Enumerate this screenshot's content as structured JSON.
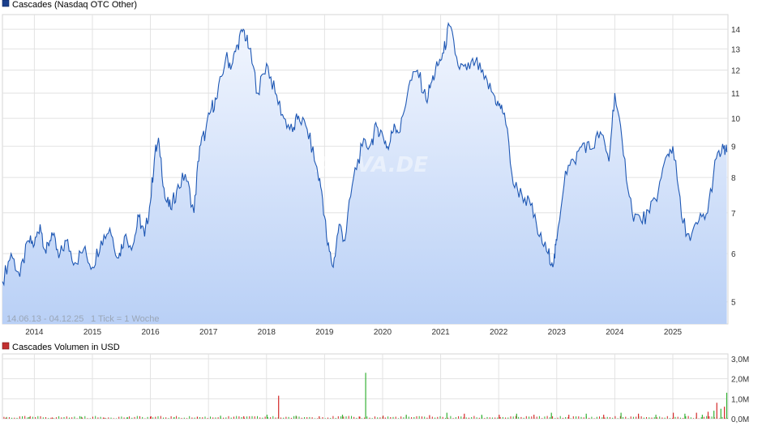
{
  "watermark": "ARIVA.DE",
  "chart_data": [
    {
      "type": "area",
      "title": "Cascades (Nasdaq OTC Other)",
      "series_color": "#1f58b4",
      "range_text": "14.06.13 - 04.12.25",
      "tick_text": "1 Tick = 1 Woche",
      "y_scale": "log",
      "ylim": [
        4.6,
        14.8
      ],
      "y_ticks": [
        5,
        6,
        7,
        8,
        9,
        10,
        11,
        12,
        13,
        14
      ],
      "x_ticks": [
        "2014",
        "2015",
        "2016",
        "2017",
        "2018",
        "2019",
        "2020",
        "2021",
        "2022",
        "2023",
        "2024",
        "2025"
      ],
      "grid": true,
      "series": [
        {
          "name": "Cascades",
          "x": [
            2013.45,
            2013.6,
            2013.75,
            2013.9,
            2014.0,
            2014.1,
            2014.2,
            2014.3,
            2014.42,
            2014.55,
            2014.7,
            2014.85,
            2015.0,
            2015.15,
            2015.3,
            2015.45,
            2015.55,
            2015.7,
            2015.8,
            2015.9,
            2016.0,
            2016.08,
            2016.15,
            2016.25,
            2016.35,
            2016.45,
            2016.6,
            2016.75,
            2016.85,
            2016.95,
            2017.05,
            2017.15,
            2017.3,
            2017.4,
            2017.5,
            2017.6,
            2017.7,
            2017.85,
            2018.0,
            2018.15,
            2018.3,
            2018.45,
            2018.55,
            2018.7,
            2018.85,
            2018.95,
            2019.05,
            2019.15,
            2019.25,
            2019.35,
            2019.5,
            2019.65,
            2019.8,
            2019.9,
            2020.0,
            2020.1,
            2020.2,
            2020.3,
            2020.45,
            2020.6,
            2020.75,
            2020.85,
            2020.95,
            2021.05,
            2021.15,
            2021.3,
            2021.45,
            2021.6,
            2021.75,
            2021.9,
            2022.0,
            2022.1,
            2022.25,
            2022.4,
            2022.55,
            2022.7,
            2022.85,
            2022.95,
            2023.0,
            2023.15,
            2023.3,
            2023.45,
            2023.6,
            2023.75,
            2023.9,
            2024.0,
            2024.15,
            2024.3,
            2024.45,
            2024.6,
            2024.75,
            2024.9,
            2025.0,
            2025.15,
            2025.3,
            2025.45,
            2025.6,
            2025.75,
            2025.88,
            2025.93
          ],
          "values": [
            5.4,
            6.0,
            5.5,
            6.3,
            6.2,
            6.7,
            6.0,
            6.5,
            5.9,
            6.3,
            5.8,
            6.1,
            5.7,
            6.3,
            6.6,
            5.9,
            6.4,
            6.2,
            6.9,
            6.4,
            7.3,
            8.8,
            9.1,
            7.4,
            7.1,
            7.6,
            8.1,
            7.0,
            9.0,
            9.5,
            10.4,
            10.8,
            12.6,
            12.2,
            13.2,
            14.0,
            13.0,
            11.0,
            12.3,
            11.0,
            10.0,
            9.5,
            10.1,
            9.6,
            8.4,
            7.6,
            6.2,
            5.7,
            6.7,
            6.3,
            8.0,
            9.0,
            9.1,
            9.7,
            9.4,
            8.9,
            9.8,
            9.5,
            11.3,
            12.0,
            10.7,
            11.5,
            12.2,
            12.8,
            14.2,
            12.2,
            12.0,
            12.4,
            11.6,
            11.0,
            10.5,
            10.2,
            7.8,
            7.5,
            7.2,
            6.4,
            6.0,
            5.8,
            6.3,
            8.2,
            8.5,
            9.1,
            8.9,
            9.5,
            8.5,
            11.0,
            8.7,
            7.0,
            6.8,
            7.0,
            7.6,
            8.7,
            9.0,
            6.9,
            6.3,
            6.8,
            7.0,
            8.6,
            8.9,
            8.8
          ]
        }
      ]
    },
    {
      "type": "bar",
      "title": "Cascades Volumen in USD",
      "series_color": "#d42a2a",
      "alt_color": "#35b235",
      "y_ticks": [
        "0,0M",
        "1,0M",
        "2,0M",
        "3,0M"
      ],
      "y_tick_values": [
        0,
        1,
        2,
        3
      ],
      "ylim": [
        0,
        3.0
      ],
      "x_ticks": [
        "2014",
        "2015",
        "2016",
        "2017",
        "2018",
        "2019",
        "2020",
        "2021",
        "2022",
        "2023",
        "2024",
        "2025"
      ],
      "grid": true,
      "series": [
        {
          "name": "Volumen",
          "x": [
            2013.5,
            2013.9,
            2014.3,
            2014.8,
            2015.2,
            2015.6,
            2016.0,
            2016.4,
            2016.8,
            2017.2,
            2017.6,
            2018.0,
            2018.2,
            2018.5,
            2018.9,
            2019.3,
            2019.6,
            2019.7,
            2020.0,
            2020.4,
            2020.8,
            2021.1,
            2021.4,
            2021.7,
            2022.0,
            2022.3,
            2022.6,
            2022.9,
            2023.2,
            2023.5,
            2023.8,
            2024.1,
            2024.4,
            2024.7,
            2025.0,
            2025.2,
            2025.4,
            2025.5,
            2025.6,
            2025.7,
            2025.75,
            2025.82,
            2025.88,
            2025.92
          ],
          "values": [
            0.05,
            0.08,
            0.06,
            0.1,
            0.05,
            0.07,
            0.12,
            0.08,
            0.1,
            0.15,
            0.12,
            0.2,
            1.15,
            0.15,
            0.12,
            0.2,
            0.1,
            2.3,
            0.15,
            0.2,
            0.18,
            0.3,
            0.25,
            0.2,
            0.2,
            0.25,
            0.2,
            0.3,
            0.2,
            0.25,
            0.2,
            0.3,
            0.25,
            0.2,
            0.3,
            0.25,
            0.3,
            0.2,
            0.35,
            0.4,
            0.8,
            0.5,
            0.6,
            1.3
          ]
        }
      ]
    }
  ]
}
